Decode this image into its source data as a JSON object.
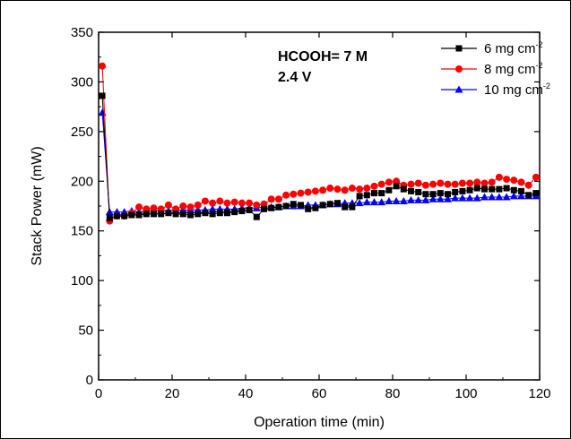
{
  "chart_data": {
    "type": "scatter",
    "xlabel": "Operation time (min)",
    "ylabel": "Stack Power (mW)",
    "xlim": [
      0,
      120
    ],
    "ylim": [
      0,
      350
    ],
    "x_ticks": [
      "0",
      "20",
      "40",
      "60",
      "80",
      "100",
      "120"
    ],
    "y_ticks": [
      "0",
      "50",
      "100",
      "150",
      "200",
      "250",
      "300",
      "350"
    ],
    "annotations": [
      "HCOOH= 7 M",
      "2.4 V"
    ],
    "legend_position": "top-right",
    "grid": false,
    "series": [
      {
        "name": "6 mg cm-2",
        "legend_text": "6 mg cm",
        "legend_sup": "-2",
        "color": "#000000",
        "marker": "square",
        "x": [
          1,
          3,
          5,
          7,
          9,
          11,
          13,
          15,
          17,
          19,
          21,
          23,
          25,
          27,
          29,
          31,
          33,
          35,
          37,
          39,
          41,
          43,
          45,
          47,
          49,
          51,
          53,
          55,
          57,
          59,
          61,
          63,
          65,
          67,
          69,
          71,
          73,
          75,
          77,
          79,
          81,
          83,
          85,
          87,
          89,
          91,
          93,
          95,
          97,
          99,
          101,
          103,
          105,
          107,
          109,
          111,
          113,
          115,
          117,
          119
        ],
        "y": [
          286,
          163,
          165,
          165,
          166,
          166,
          167,
          167,
          167,
          168,
          167,
          167,
          166,
          167,
          168,
          167,
          168,
          168,
          169,
          170,
          171,
          164,
          172,
          173,
          174,
          175,
          177,
          176,
          172,
          173,
          176,
          177,
          178,
          174,
          174,
          185,
          186,
          188,
          188,
          191,
          195,
          192,
          190,
          189,
          187,
          187,
          188,
          187,
          189,
          190,
          191,
          193,
          192,
          192,
          192,
          193,
          191,
          190,
          186,
          188
        ]
      },
      {
        "name": "8 mg cm-2",
        "legend_text": "8 mg cm",
        "legend_sup": "-2",
        "color": "#ff0000",
        "marker": "circle",
        "x": [
          1,
          3,
          5,
          7,
          9,
          11,
          13,
          15,
          17,
          19,
          21,
          23,
          25,
          27,
          29,
          31,
          33,
          35,
          37,
          39,
          41,
          43,
          45,
          47,
          49,
          51,
          53,
          55,
          57,
          59,
          61,
          63,
          65,
          67,
          69,
          71,
          73,
          75,
          77,
          79,
          81,
          83,
          85,
          87,
          89,
          91,
          93,
          95,
          97,
          99,
          101,
          103,
          105,
          107,
          109,
          111,
          113,
          115,
          117,
          119
        ],
        "y": [
          316,
          160,
          165,
          165,
          168,
          174,
          172,
          173,
          172,
          176,
          172,
          175,
          174,
          176,
          180,
          178,
          180,
          178,
          179,
          178,
          178,
          176,
          177,
          182,
          182,
          186,
          187,
          188,
          189,
          190,
          191,
          193,
          192,
          191,
          193,
          192,
          193,
          195,
          197,
          199,
          200,
          196,
          197,
          198,
          196,
          197,
          198,
          197,
          197,
          198,
          198,
          199,
          198,
          199,
          204,
          202,
          201,
          199,
          196,
          204
        ]
      },
      {
        "name": "10 mg cm-2",
        "legend_text": "10 mg cm",
        "legend_sup": "-2",
        "color": "#0000ff",
        "marker": "triangle",
        "x": [
          1,
          3,
          5,
          7,
          9,
          11,
          13,
          15,
          17,
          19,
          21,
          23,
          25,
          27,
          29,
          31,
          33,
          35,
          37,
          39,
          41,
          43,
          45,
          47,
          49,
          51,
          53,
          55,
          57,
          59,
          61,
          63,
          65,
          67,
          69,
          71,
          73,
          75,
          77,
          79,
          81,
          83,
          85,
          87,
          89,
          91,
          93,
          95,
          97,
          99,
          101,
          103,
          105,
          107,
          109,
          111,
          113,
          115,
          117,
          119
        ],
        "y": [
          269,
          169,
          169,
          169,
          170,
          169,
          170,
          170,
          170,
          170,
          171,
          171,
          171,
          171,
          171,
          172,
          172,
          172,
          172,
          173,
          173,
          173,
          174,
          174,
          174,
          175,
          175,
          175,
          176,
          176,
          176,
          177,
          177,
          178,
          178,
          178,
          179,
          179,
          179,
          180,
          180,
          180,
          181,
          181,
          181,
          182,
          182,
          182,
          183,
          183,
          183,
          183,
          184,
          184,
          184,
          184,
          185,
          185,
          185,
          185
        ]
      }
    ]
  }
}
